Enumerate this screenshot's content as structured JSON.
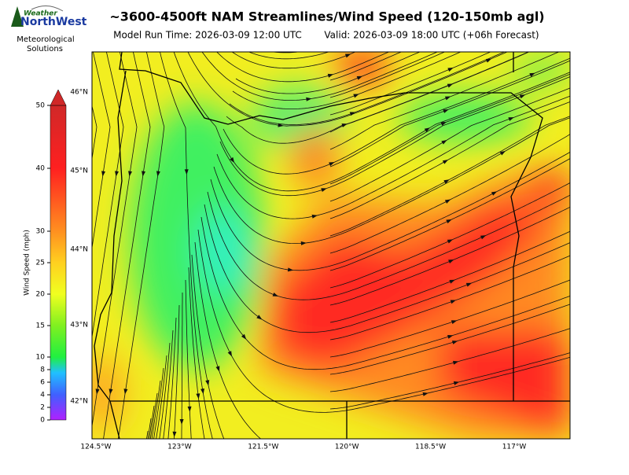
{
  "logo": {
    "line1": "Weather",
    "line2": "NorthWest",
    "caption": [
      "Meteorological",
      "Solutions"
    ]
  },
  "title": "~3600-4500ft NAM Streamlines/Wind Speed (120-150mb agl)",
  "subtitle_run": "Model Run Time: 2026-03-09 12:00 UTC",
  "subtitle_valid": "Valid: 2026-03-09 18:00 UTC  (+06h Forecast)",
  "colorbar": {
    "label": "Wind Speed (mph)",
    "range": [
      0,
      50
    ],
    "ticks": [
      0,
      2,
      4,
      6,
      8,
      10,
      15,
      20,
      25,
      30,
      40,
      50
    ]
  },
  "lat_labels": [
    "46°N",
    "45°N",
    "44°N",
    "43°N",
    "42°N"
  ],
  "lon_labels": [
    "124.5°W",
    "123°W",
    "121.5°W",
    "120°W",
    "118.5°W",
    "117°W"
  ]
}
